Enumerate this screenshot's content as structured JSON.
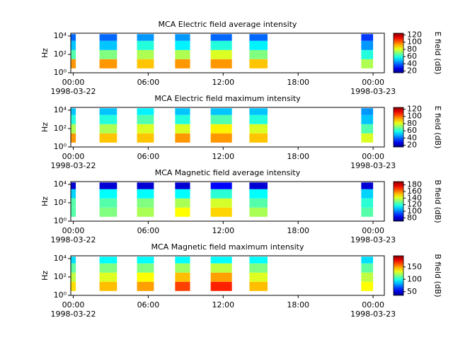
{
  "chart_data": [
    {
      "type": "heatmap",
      "title": "MCA  Electric field average intensity",
      "ylabel": "Hz",
      "colorbar_label": "E field (dB)",
      "xlim": [
        -0.2,
        24.9
      ],
      "xticks": [
        {
          "value": 0,
          "label": "00:00",
          "date": "1998-03-22"
        },
        {
          "value": 6,
          "label": "06:00"
        },
        {
          "value": 12,
          "label": "12:00"
        },
        {
          "value": 18,
          "label": "18:00"
        },
        {
          "value": 24,
          "label": "00:00",
          "date": "1998-03-23"
        }
      ],
      "log_y": true,
      "ylim": [
        1,
        20000
      ],
      "yticks": [
        {
          "value": 1,
          "label": "10⁰"
        },
        {
          "value": 100,
          "label": "10²"
        },
        {
          "value": 10000,
          "label": "10⁴"
        }
      ],
      "clim": [
        15,
        125
      ],
      "cticks": [
        20,
        40,
        60,
        80,
        100,
        120
      ],
      "time_blocks": [
        [
          -0.2,
          0.2
        ],
        [
          2.1,
          3.5
        ],
        [
          5.1,
          6.45
        ],
        [
          8.15,
          9.35
        ],
        [
          11.0,
          12.7
        ],
        [
          14.1,
          15.55
        ],
        [
          23.05,
          24.0
        ]
      ],
      "freq_edges": [
        3,
        30,
        300,
        3000,
        16000
      ],
      "values": [
        [
          95,
          65,
          50,
          40
        ],
        [
          95,
          70,
          50,
          40
        ],
        [
          90,
          75,
          60,
          45
        ],
        [
          95,
          75,
          55,
          45
        ],
        [
          95,
          80,
          60,
          40
        ],
        [
          90,
          70,
          55,
          40
        ],
        [
          75,
          60,
          45,
          35
        ]
      ]
    },
    {
      "type": "heatmap",
      "title": "MCA  Electric field maximum intensity",
      "ylabel": "Hz",
      "colorbar_label": "E field (dB)",
      "xlim": [
        -0.2,
        24.9
      ],
      "xticks": [
        {
          "value": 0,
          "label": "00:00",
          "date": "1998-03-22"
        },
        {
          "value": 6,
          "label": "06:00"
        },
        {
          "value": 12,
          "label": "12:00"
        },
        {
          "value": 18,
          "label": "18:00"
        },
        {
          "value": 24,
          "label": "00:00",
          "date": "1998-03-23"
        }
      ],
      "log_y": true,
      "ylim": [
        1,
        20000
      ],
      "yticks": [
        {
          "value": 1,
          "label": "10⁰"
        },
        {
          "value": 100,
          "label": "10²"
        },
        {
          "value": 10000,
          "label": "10⁴"
        }
      ],
      "clim": [
        15,
        125
      ],
      "cticks": [
        20,
        40,
        60,
        80,
        100,
        120
      ],
      "time_blocks": [
        [
          -0.2,
          0.2
        ],
        [
          2.1,
          3.5
        ],
        [
          5.1,
          6.45
        ],
        [
          8.15,
          9.35
        ],
        [
          11.0,
          12.7
        ],
        [
          14.1,
          15.55
        ],
        [
          23.05,
          24.0
        ]
      ],
      "freq_edges": [
        3,
        30,
        300,
        3000,
        16000
      ],
      "values": [
        [
          95,
          75,
          60,
          50
        ],
        [
          90,
          75,
          60,
          50
        ],
        [
          90,
          80,
          65,
          55
        ],
        [
          95,
          80,
          60,
          50
        ],
        [
          95,
          85,
          65,
          50
        ],
        [
          90,
          80,
          60,
          50
        ],
        [
          80,
          65,
          50,
          45
        ]
      ]
    },
    {
      "type": "heatmap",
      "title": "MCA  Magnetic field average intensity",
      "ylabel": "Hz",
      "colorbar_label": "B field (dB)",
      "xlim": [
        -0.2,
        24.9
      ],
      "xticks": [
        {
          "value": 0,
          "label": "00:00",
          "date": "1998-03-22"
        },
        {
          "value": 6,
          "label": "06:00"
        },
        {
          "value": 12,
          "label": "12:00"
        },
        {
          "value": 18,
          "label": "18:00"
        },
        {
          "value": 24,
          "label": "00:00",
          "date": "1998-03-23"
        }
      ],
      "log_y": true,
      "ylim": [
        1,
        20000
      ],
      "yticks": [
        {
          "value": 1,
          "label": "10⁰"
        },
        {
          "value": 100,
          "label": "10²"
        },
        {
          "value": 10000,
          "label": "10⁴"
        }
      ],
      "clim": [
        70,
        190
      ],
      "cticks": [
        80,
        100,
        120,
        140,
        160,
        180
      ],
      "time_blocks": [
        [
          -0.2,
          0.2
        ],
        [
          2.1,
          3.5
        ],
        [
          5.1,
          6.45
        ],
        [
          8.15,
          9.35
        ],
        [
          11.0,
          12.7
        ],
        [
          14.1,
          15.55
        ],
        [
          23.05,
          24.0
        ]
      ],
      "freq_edges": [
        3,
        30,
        300,
        3000,
        16000
      ],
      "values": [
        [
          125,
          125,
          110,
          80
        ],
        [
          130,
          125,
          115,
          80
        ],
        [
          135,
          130,
          115,
          80
        ],
        [
          145,
          135,
          115,
          80
        ],
        [
          150,
          140,
          120,
          85
        ],
        [
          135,
          125,
          115,
          80
        ],
        [
          125,
          120,
          110,
          80
        ]
      ]
    },
    {
      "type": "heatmap",
      "title": "MCA  Magnetic field maximum intensity",
      "ylabel": "Hz",
      "colorbar_label": "B field (dB)",
      "xlim": [
        -0.2,
        24.9
      ],
      "xticks": [
        {
          "value": 0,
          "label": "00:00",
          "date": "1998-03-22"
        },
        {
          "value": 6,
          "label": "06:00"
        },
        {
          "value": 12,
          "label": "12:00"
        },
        {
          "value": 18,
          "label": "18:00"
        },
        {
          "value": 24,
          "label": "00:00",
          "date": "1998-03-23"
        }
      ],
      "log_y": true,
      "ylim": [
        1,
        20000
      ],
      "yticks": [
        {
          "value": 1,
          "label": "10⁰"
        },
        {
          "value": 100,
          "label": "10²"
        },
        {
          "value": 10000,
          "label": "10⁴"
        }
      ],
      "clim": [
        35,
        195
      ],
      "cticks": [
        50,
        100,
        150
      ],
      "time_blocks": [
        [
          -0.2,
          0.2
        ],
        [
          2.1,
          3.5
        ],
        [
          5.1,
          6.45
        ],
        [
          8.15,
          9.35
        ],
        [
          11.0,
          12.7
        ],
        [
          14.1,
          15.55
        ],
        [
          23.05,
          24.0
        ]
      ],
      "freq_edges": [
        3,
        30,
        300,
        3000,
        16000
      ],
      "values": [
        [
          140,
          125,
          110,
          90
        ],
        [
          145,
          130,
          115,
          95
        ],
        [
          150,
          135,
          115,
          95
        ],
        [
          165,
          145,
          120,
          95
        ],
        [
          170,
          150,
          125,
          95
        ],
        [
          145,
          130,
          115,
          95
        ],
        [
          135,
          125,
          110,
          90
        ]
      ]
    }
  ]
}
